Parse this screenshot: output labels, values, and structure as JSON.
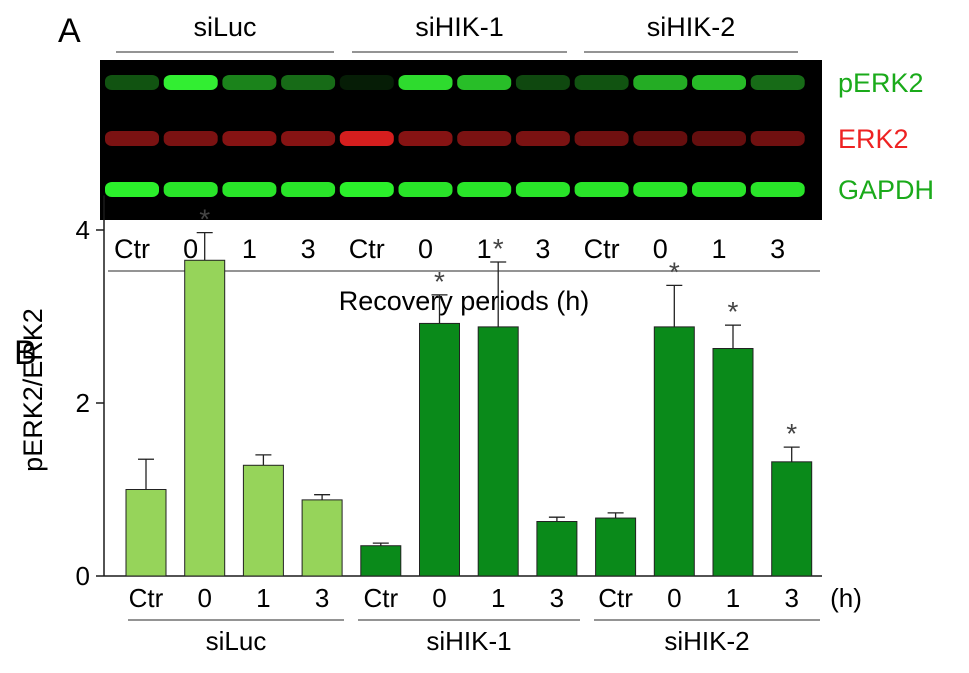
{
  "panel_a": {
    "label": "A",
    "groups": [
      "siLuc",
      "siHIK-1",
      "siHIK-2"
    ],
    "lanes": [
      "Ctr",
      "0",
      "1",
      "3",
      "Ctr",
      "0",
      "1",
      "3",
      "Ctr",
      "0",
      "1",
      "3"
    ],
    "xlabel": "Recovery periods (h)",
    "rows": [
      {
        "label": "pERK2",
        "color": "#1aaa1a",
        "band_color": "#32ee32",
        "intensities": [
          0.35,
          1.0,
          0.55,
          0.45,
          0.12,
          0.92,
          0.8,
          0.3,
          0.35,
          0.72,
          0.78,
          0.45
        ]
      },
      {
        "label": "ERK2",
        "color": "#ee2222",
        "band_color": "#e02020",
        "intensities": [
          0.55,
          0.55,
          0.6,
          0.6,
          0.95,
          0.6,
          0.55,
          0.55,
          0.5,
          0.45,
          0.45,
          0.5
        ]
      },
      {
        "label": "GAPDH",
        "color": "#1aaa1a",
        "band_color": "#2bf02b",
        "intensities": [
          1.0,
          0.95,
          0.95,
          0.95,
          1.0,
          0.95,
          0.95,
          0.95,
          0.95,
          0.95,
          0.95,
          0.95
        ]
      }
    ]
  },
  "panel_b": {
    "label": "B",
    "unit_label": "(h)",
    "colors": {
      "siLuc": "#96d45a",
      "siHIK": "#0a8a1a",
      "axis": "#1a1a1a"
    }
  },
  "chart_data": {
    "type": "bar",
    "title": "",
    "xlabel": "",
    "ylabel": "pERK2/ERK2",
    "ylim": [
      0,
      4.4
    ],
    "yticks": [
      0,
      2,
      4
    ],
    "groups": [
      "siLuc",
      "siHIK-1",
      "siHIK-2"
    ],
    "categories": [
      "Ctr",
      "0",
      "1",
      "3",
      "Ctr",
      "0",
      "1",
      "3",
      "Ctr",
      "0",
      "1",
      "3"
    ],
    "values": [
      1.0,
      3.65,
      1.28,
      0.88,
      0.35,
      2.92,
      2.88,
      0.63,
      0.67,
      2.88,
      2.63,
      1.32
    ],
    "errors": [
      0.35,
      0.32,
      0.12,
      0.06,
      0.03,
      0.33,
      0.75,
      0.05,
      0.06,
      0.48,
      0.27,
      0.17
    ],
    "significant": [
      false,
      true,
      false,
      false,
      false,
      true,
      true,
      false,
      false,
      true,
      true,
      true
    ],
    "significance_marker": "*",
    "grid": false
  }
}
